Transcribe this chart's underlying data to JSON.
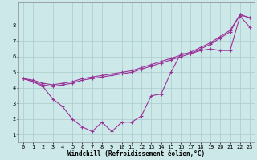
{
  "background_color": "#cce8e8",
  "grid_color": "#aacccc",
  "line_color": "#993399",
  "marker": "+",
  "markersize": 3,
  "linewidth": 0.8,
  "xlim": [
    -0.5,
    23.5
  ],
  "ylim": [
    0.5,
    9.5
  ],
  "xticks": [
    0,
    1,
    2,
    3,
    4,
    5,
    6,
    7,
    8,
    9,
    10,
    11,
    12,
    13,
    14,
    15,
    16,
    17,
    18,
    19,
    20,
    21,
    22,
    23
  ],
  "yticks": [
    1,
    2,
    3,
    4,
    5,
    6,
    7,
    8
  ],
  "xlabel": "Windchill (Refroidissement éolien,°C)",
  "xlabel_fontsize": 5.5,
  "tick_fontsize": 5.0,
  "series1_x": [
    0,
    1,
    2,
    3,
    4,
    5,
    6,
    7,
    8,
    9,
    10,
    11,
    12,
    13,
    14,
    15,
    16,
    17,
    18,
    19,
    20,
    21,
    22,
    23
  ],
  "series1_y": [
    4.6,
    4.4,
    4.1,
    3.3,
    2.8,
    2.0,
    1.5,
    1.2,
    1.8,
    1.2,
    1.8,
    1.8,
    2.2,
    3.5,
    3.6,
    5.0,
    6.2,
    6.2,
    6.4,
    6.5,
    6.4,
    6.4,
    8.6,
    7.9
  ],
  "series2_x": [
    0,
    1,
    2,
    3,
    4,
    5,
    6,
    7,
    8,
    9,
    10,
    11,
    12,
    13,
    14,
    15,
    16,
    17,
    18,
    19,
    20,
    21,
    22,
    23
  ],
  "series2_y": [
    4.6,
    4.5,
    4.3,
    4.2,
    4.3,
    4.4,
    4.6,
    4.7,
    4.8,
    4.9,
    5.0,
    5.1,
    5.3,
    5.5,
    5.7,
    5.9,
    6.1,
    6.3,
    6.6,
    6.9,
    7.3,
    7.7,
    8.7,
    8.5
  ],
  "series3_x": [
    0,
    1,
    2,
    3,
    4,
    5,
    6,
    7,
    8,
    9,
    10,
    11,
    12,
    13,
    14,
    15,
    16,
    17,
    18,
    19,
    20,
    21,
    22,
    23
  ],
  "series3_y": [
    4.6,
    4.4,
    4.2,
    4.1,
    4.2,
    4.3,
    4.5,
    4.6,
    4.7,
    4.8,
    4.9,
    5.0,
    5.2,
    5.4,
    5.6,
    5.8,
    6.0,
    6.2,
    6.5,
    6.8,
    7.2,
    7.6,
    8.7,
    8.5
  ]
}
